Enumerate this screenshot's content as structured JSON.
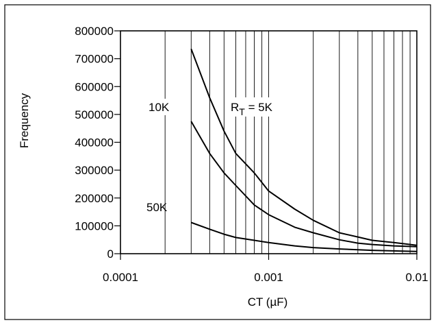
{
  "chart_data": {
    "type": "line",
    "xlabel": "CT (µF)",
    "ylabel": "Frequency",
    "xscale": "log",
    "xlim": [
      0.0001,
      0.01
    ],
    "ylim": [
      0,
      800000
    ],
    "x_tick_labels": [
      "0.0001",
      "0.001",
      "0.01"
    ],
    "y_tick_labels": [
      "0",
      "100000",
      "200000",
      "300000",
      "400000",
      "500000",
      "600000",
      "700000",
      "800000"
    ],
    "grid": "vertical",
    "series": [
      {
        "name": "5K",
        "x": [
          0.0003,
          0.0004,
          0.0005,
          0.0006,
          0.0008,
          0.001,
          0.0015,
          0.002,
          0.003,
          0.004,
          0.005,
          0.007,
          0.01
        ],
        "values": [
          735000,
          560000,
          440000,
          360000,
          290000,
          225000,
          160000,
          120000,
          75000,
          60000,
          48000,
          40000,
          30000
        ]
      },
      {
        "name": "10K",
        "x": [
          0.0003,
          0.0004,
          0.0005,
          0.0006,
          0.0008,
          0.001,
          0.0015,
          0.002,
          0.003,
          0.004,
          0.005,
          0.007,
          0.01
        ],
        "values": [
          475000,
          360000,
          290000,
          245000,
          175000,
          140000,
          95000,
          75000,
          50000,
          38000,
          33000,
          28000,
          25000
        ]
      },
      {
        "name": "50K",
        "x": [
          0.0003,
          0.0004,
          0.0005,
          0.0006,
          0.0008,
          0.001,
          0.0015,
          0.002,
          0.003,
          0.005,
          0.01
        ],
        "values": [
          112000,
          88000,
          70000,
          58000,
          48000,
          40000,
          28000,
          22000,
          17000,
          12000,
          8000
        ]
      }
    ],
    "annotations": [
      {
        "series": "5K",
        "prefix": "R",
        "subscript": "T",
        "text": " = 5K"
      },
      {
        "series": "10K",
        "text": "10K"
      },
      {
        "series": "50K",
        "text": "50K"
      }
    ]
  }
}
